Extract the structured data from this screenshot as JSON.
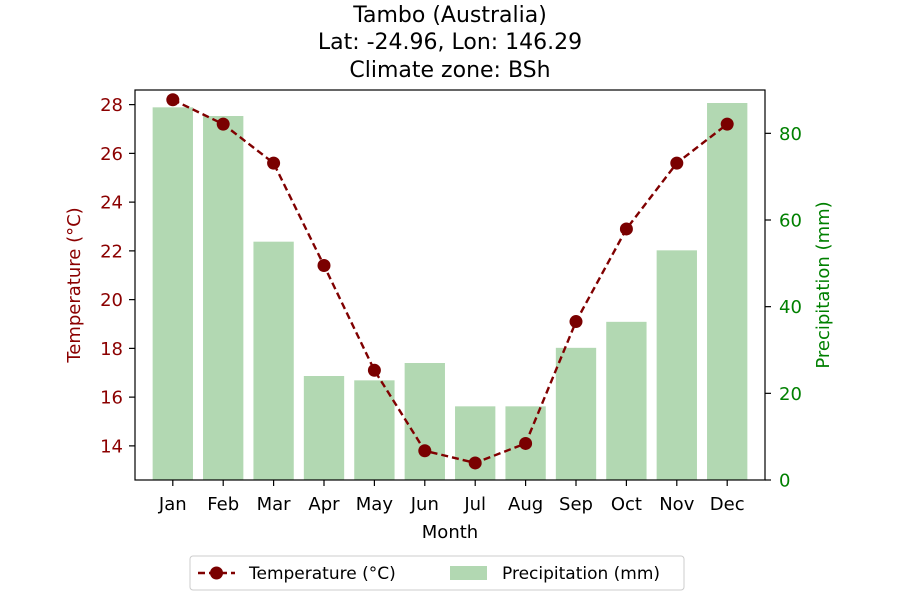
{
  "chart_data": {
    "type": "bar",
    "title_lines": [
      "Tambo (Australia)",
      "Lat: -24.96, Lon: 146.29",
      "Climate zone: BSh"
    ],
    "xlabel": "Month",
    "ylabel_left": "Temperature (°C)",
    "ylabel_right": "Precipitation (mm)",
    "categories": [
      "Jan",
      "Feb",
      "Mar",
      "Apr",
      "May",
      "Jun",
      "Jul",
      "Aug",
      "Sep",
      "Oct",
      "Nov",
      "Dec"
    ],
    "y_left": {
      "lim": [
        12.6,
        28.6
      ],
      "ticks": [
        14,
        16,
        18,
        20,
        22,
        24,
        26,
        28
      ]
    },
    "y_right": {
      "lim": [
        0,
        90
      ],
      "ticks": [
        0,
        20,
        40,
        60,
        80
      ]
    },
    "series": [
      {
        "name": "Temperature (°C)",
        "type": "line",
        "axis": "left",
        "style": "dashed-with-circle-markers",
        "color": "#800000",
        "values": [
          28.2,
          27.2,
          25.6,
          21.4,
          17.1,
          13.8,
          13.3,
          14.1,
          19.1,
          22.9,
          25.6,
          27.2
        ]
      },
      {
        "name": "Precipitation (mm)",
        "type": "bar",
        "axis": "right",
        "color": "#b2d8b2",
        "values": [
          86,
          84,
          55,
          24,
          23,
          27,
          17,
          17,
          30.5,
          36.5,
          53,
          87
        ]
      }
    ],
    "colors": {
      "left_axis": "#8b0000",
      "right_axis": "#008000"
    },
    "grid": false,
    "legend_position": "bottom-center"
  }
}
